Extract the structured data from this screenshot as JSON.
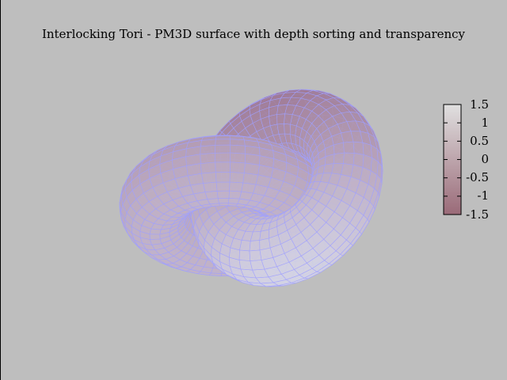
{
  "chart_data": {
    "type": "surface3d",
    "title": "Interlocking Tori - PM3D surface with depth sorting and transparency",
    "surfaces": [
      {
        "shape": "torus",
        "major_radius": 1,
        "minor_radius": 0.5,
        "center": [
          0,
          0,
          0
        ],
        "axis": "z"
      },
      {
        "shape": "torus",
        "major_radius": 1,
        "minor_radius": 0.5,
        "center": [
          1,
          0,
          0
        ],
        "axis": "y"
      }
    ],
    "colorbar": {
      "range": [
        -1.5,
        1.5
      ],
      "ticks": [
        1.5,
        1,
        0.5,
        0,
        -0.5,
        -1,
        -1.5
      ],
      "tick_labels": [
        "1.5",
        "1",
        "0.5",
        "0",
        "-0.5",
        "-1",
        "-1.5"
      ],
      "low_color": "#9a6a78",
      "high_color": "#e0e0e0"
    },
    "mesh_color": "#a0a0ff",
    "background": "#bebebe",
    "grid": false,
    "transparency": true,
    "depth_sorting": true
  }
}
